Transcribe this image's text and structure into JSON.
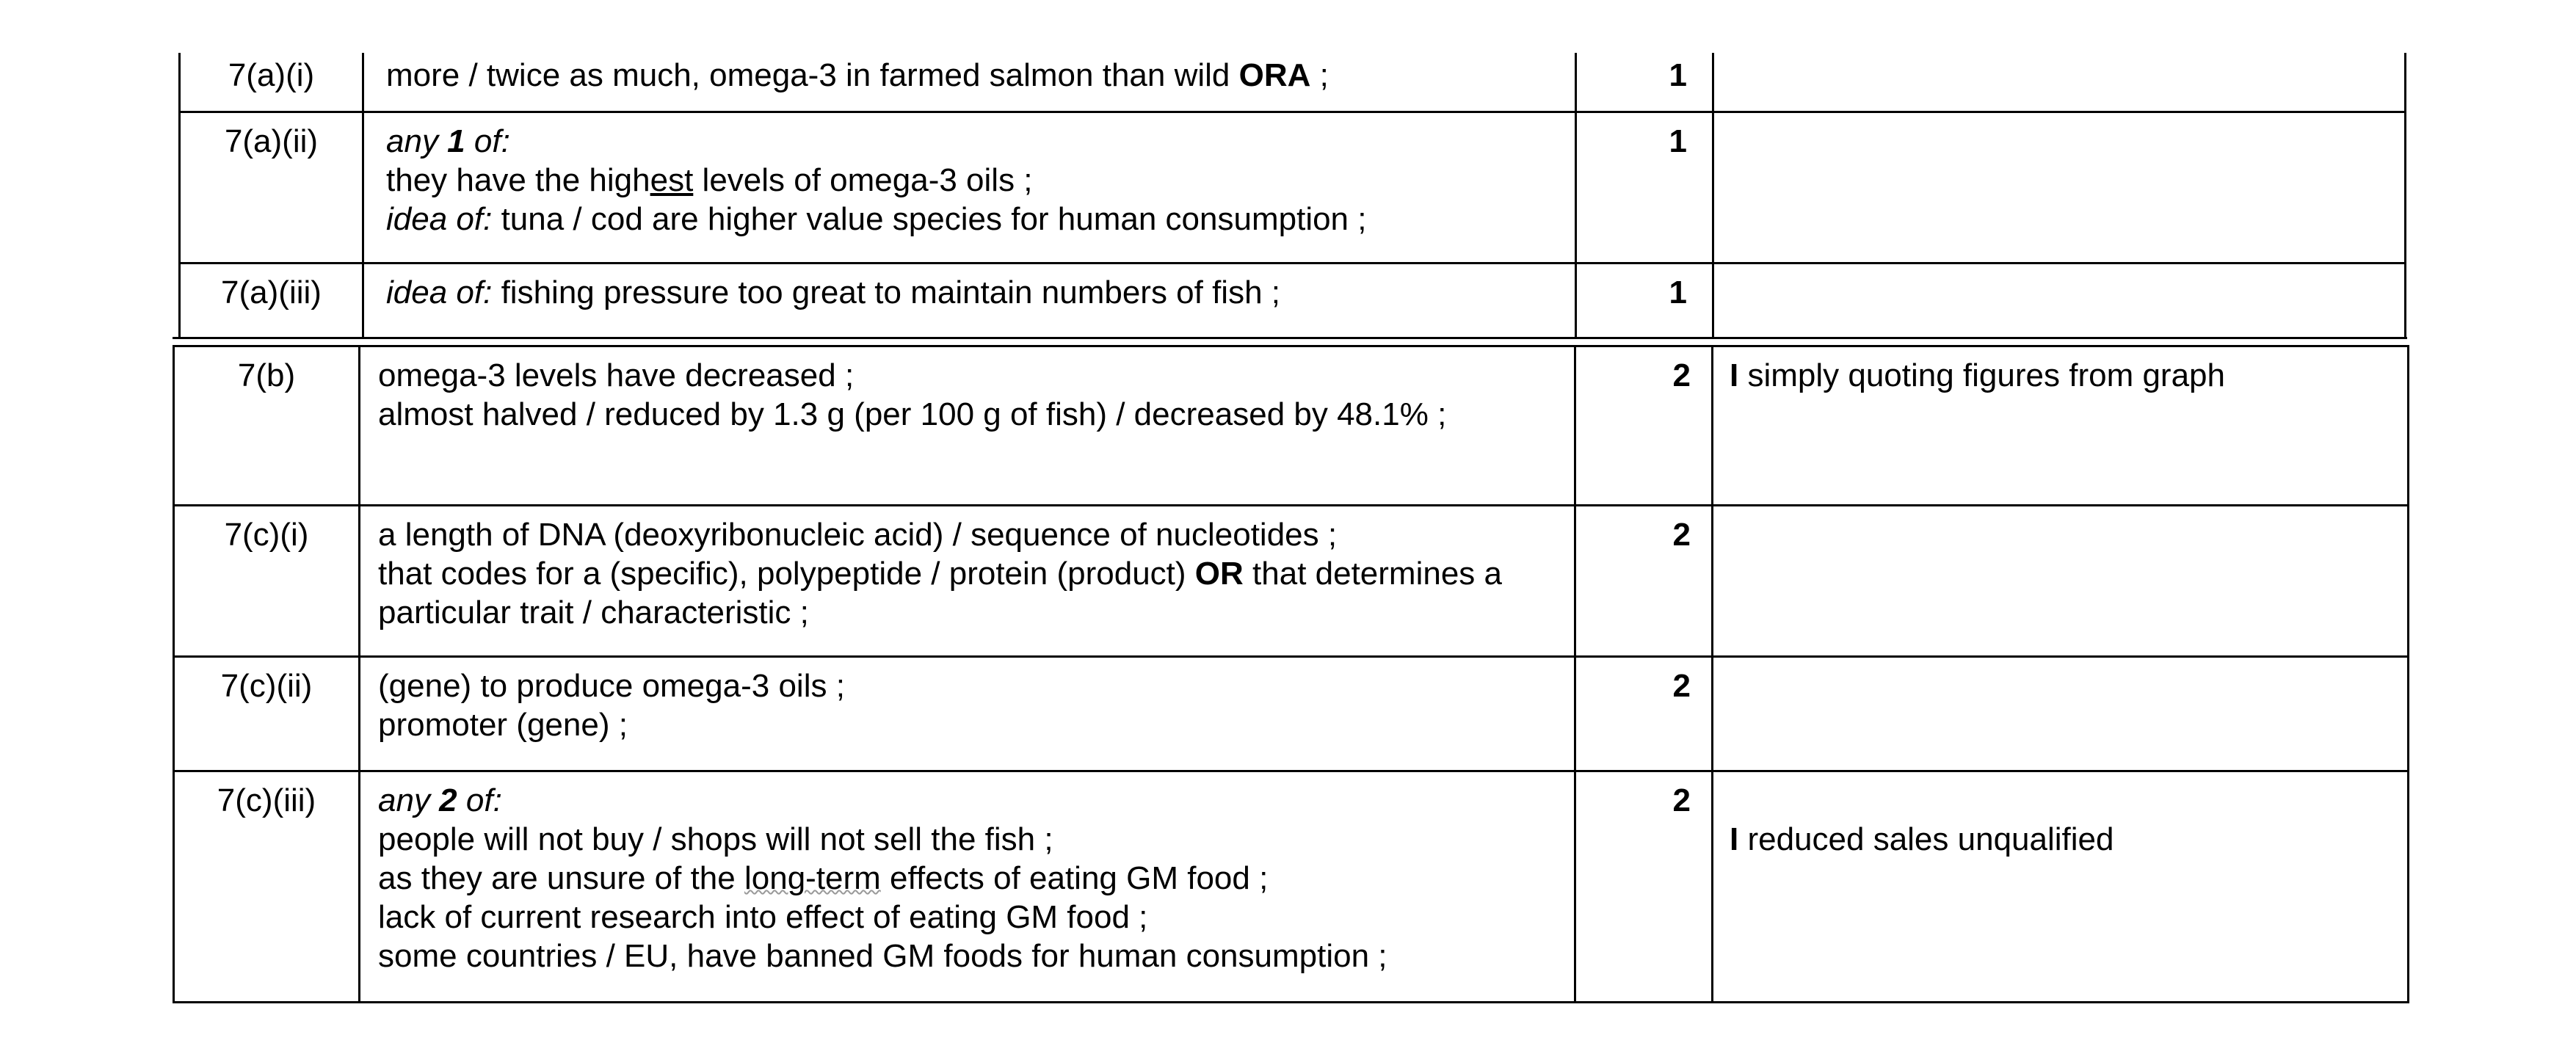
{
  "mark_scheme": {
    "rows_a": [
      {
        "question": "7(a)(i)",
        "answer": {
          "l1_a": "more / twice as much, omega-3 in farmed salmon than wild ",
          "l1_b": "ORA",
          "l1_c": " ;"
        },
        "marks": "1",
        "guidance": ""
      },
      {
        "question": "7(a)(ii)",
        "answer": {
          "l1_a": "any ",
          "l1_b": "1",
          "l1_c": " of:",
          "l2_a": "they have the high",
          "l2_b": "est",
          "l2_c": " levels of omega-3 oils ;",
          "l3_a": "idea of:",
          "l3_b": " tuna / cod are higher value species for human consumption ;"
        },
        "marks": "1",
        "guidance": ""
      },
      {
        "question": "7(a)(iii)",
        "answer": {
          "l1_a": "idea of:",
          "l1_b": " fishing pressure too great to maintain numbers of fish ;"
        },
        "marks": "1",
        "guidance": ""
      }
    ],
    "rows_b": [
      {
        "question": "7(b)",
        "answer": {
          "l1": "omega-3 levels have decreased ;",
          "l2": "almost halved / reduced by 1.3 g (per 100 g of fish) / decreased by 48.1% ;"
        },
        "marks": "2",
        "guidance": {
          "a": "I",
          "b": " simply quoting figures from graph"
        }
      },
      {
        "question": "7(c)(i)",
        "answer": {
          "l1": "a length of DNA (deoxyribonucleic acid) / sequence of nucleotides ;",
          "l2_a": "that codes for a (specific), polypeptide / protein (product) ",
          "l2_b": "OR",
          "l2_c": " that determines a",
          "l3": "particular trait / characteristic ;"
        },
        "marks": "2",
        "guidance": ""
      },
      {
        "question": "7(c)(ii)",
        "answer": {
          "l1": "(gene) to produce omega-3 oils ;",
          "l2": "promoter (gene) ;"
        },
        "marks": "2",
        "guidance": ""
      },
      {
        "question": "7(c)(iii)",
        "answer": {
          "l1_a": "any ",
          "l1_b": "2",
          "l1_c": " of:",
          "l2": "people will not buy / shops will not sell the fish ;",
          "l3_a": "as they are unsure of the ",
          "l3_b": "long-term",
          "l3_c": " effects of eating GM food ;",
          "l4": "lack of current research into effect of eating GM food ;",
          "l5": "some countries / EU, have banned GM foods for human consumption ;"
        },
        "marks": "2",
        "guidance": {
          "a": "I",
          "b": " reduced sales unqualified"
        }
      }
    ]
  }
}
